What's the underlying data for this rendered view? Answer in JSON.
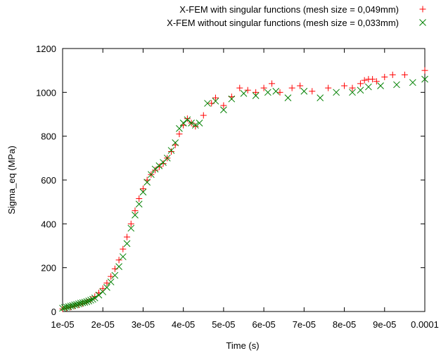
{
  "chart_data": {
    "type": "scatter",
    "title": "",
    "xlabel": "Time (s)",
    "ylabel": "Sigma_eq (MPa)",
    "xlim": [
      1e-05,
      0.0001
    ],
    "ylim": [
      0,
      1200
    ],
    "x_ticks": [
      {
        "value": 1e-05,
        "label": "1e-05"
      },
      {
        "value": 2e-05,
        "label": "2e-05"
      },
      {
        "value": 3e-05,
        "label": "3e-05"
      },
      {
        "value": 4e-05,
        "label": "4e-05"
      },
      {
        "value": 5e-05,
        "label": "5e-05"
      },
      {
        "value": 6e-05,
        "label": "6e-05"
      },
      {
        "value": 7e-05,
        "label": "7e-05"
      },
      {
        "value": 8e-05,
        "label": "8e-05"
      },
      {
        "value": 9e-05,
        "label": "9e-05"
      },
      {
        "value": 0.0001,
        "label": "0.0001"
      }
    ],
    "y_ticks": [
      {
        "value": 0,
        "label": "0"
      },
      {
        "value": 200,
        "label": "200"
      },
      {
        "value": 400,
        "label": "400"
      },
      {
        "value": 600,
        "label": "600"
      },
      {
        "value": 800,
        "label": "800"
      },
      {
        "value": 1000,
        "label": "1000"
      },
      {
        "value": 1200,
        "label": "1200"
      }
    ],
    "grid": false,
    "legend_position": "top-right",
    "series": [
      {
        "name": "X-FEM with singular functions (mesh size = 0,049mm)",
        "marker": "plus",
        "color": "#ff0000",
        "points": [
          [
            1e-05,
            12
          ],
          [
            1.1e-05,
            16
          ],
          [
            1.2e-05,
            20
          ],
          [
            1.3e-05,
            25
          ],
          [
            1.4e-05,
            30
          ],
          [
            1.5e-05,
            37
          ],
          [
            1.6e-05,
            45
          ],
          [
            1.7e-05,
            55
          ],
          [
            1.8e-05,
            68
          ],
          [
            1.9e-05,
            85
          ],
          [
            2e-05,
            105
          ],
          [
            2.1e-05,
            130
          ],
          [
            2.2e-05,
            160
          ],
          [
            2.3e-05,
            195
          ],
          [
            2.4e-05,
            235
          ],
          [
            2.5e-05,
            285
          ],
          [
            2.6e-05,
            340
          ],
          [
            2.7e-05,
            400
          ],
          [
            2.8e-05,
            460
          ],
          [
            2.9e-05,
            515
          ],
          [
            3e-05,
            560
          ],
          [
            3.1e-05,
            600
          ],
          [
            3.2e-05,
            625
          ],
          [
            3.3e-05,
            645
          ],
          [
            3.4e-05,
            660
          ],
          [
            3.5e-05,
            675
          ],
          [
            3.6e-05,
            700
          ],
          [
            3.7e-05,
            730
          ],
          [
            3.8e-05,
            760
          ],
          [
            3.9e-05,
            810
          ],
          [
            4e-05,
            850
          ],
          [
            4.1e-05,
            880
          ],
          [
            4.2e-05,
            860
          ],
          [
            4.3e-05,
            845
          ],
          [
            4.5e-05,
            895
          ],
          [
            4.7e-05,
            950
          ],
          [
            4.8e-05,
            975
          ],
          [
            5e-05,
            940
          ],
          [
            5.2e-05,
            980
          ],
          [
            5.4e-05,
            1020
          ],
          [
            5.6e-05,
            1010
          ],
          [
            5.8e-05,
            1000
          ],
          [
            6e-05,
            1020
          ],
          [
            6.2e-05,
            1040
          ],
          [
            6.4e-05,
            1000
          ],
          [
            6.7e-05,
            1020
          ],
          [
            6.9e-05,
            1030
          ],
          [
            7.2e-05,
            1005
          ],
          [
            7.6e-05,
            1020
          ],
          [
            8e-05,
            1030
          ],
          [
            8.2e-05,
            1020
          ],
          [
            8.4e-05,
            1040
          ],
          [
            8.5e-05,
            1055
          ],
          [
            8.6e-05,
            1060
          ],
          [
            8.7e-05,
            1060
          ],
          [
            8.8e-05,
            1050
          ],
          [
            9e-05,
            1070
          ],
          [
            9.2e-05,
            1080
          ],
          [
            9.5e-05,
            1080
          ],
          [
            0.0001,
            1100
          ]
        ]
      },
      {
        "name": "X-FEM without singular functions (mesh size = 0,033mm)",
        "marker": "cross",
        "color": "#008000",
        "points": [
          [
            1e-05,
            15
          ],
          [
            1.05e-05,
            18
          ],
          [
            1.1e-05,
            20
          ],
          [
            1.15e-05,
            22
          ],
          [
            1.2e-05,
            25
          ],
          [
            1.25e-05,
            27
          ],
          [
            1.3e-05,
            30
          ],
          [
            1.35e-05,
            32
          ],
          [
            1.4e-05,
            35
          ],
          [
            1.45e-05,
            38
          ],
          [
            1.5e-05,
            40
          ],
          [
            1.55e-05,
            42
          ],
          [
            1.6e-05,
            45
          ],
          [
            1.65e-05,
            48
          ],
          [
            1.7e-05,
            52
          ],
          [
            1.75e-05,
            56
          ],
          [
            1.8e-05,
            62
          ],
          [
            1.9e-05,
            75
          ],
          [
            2e-05,
            90
          ],
          [
            2.1e-05,
            110
          ],
          [
            2.2e-05,
            135
          ],
          [
            2.3e-05,
            165
          ],
          [
            2.4e-05,
            205
          ],
          [
            2.5e-05,
            250
          ],
          [
            2.6e-05,
            310
          ],
          [
            2.7e-05,
            380
          ],
          [
            2.8e-05,
            440
          ],
          [
            2.9e-05,
            490
          ],
          [
            3e-05,
            545
          ],
          [
            3.1e-05,
            590
          ],
          [
            3.2e-05,
            625
          ],
          [
            3.3e-05,
            650
          ],
          [
            3.4e-05,
            665
          ],
          [
            3.5e-05,
            680
          ],
          [
            3.6e-05,
            700
          ],
          [
            3.7e-05,
            735
          ],
          [
            3.8e-05,
            770
          ],
          [
            3.9e-05,
            835
          ],
          [
            4e-05,
            860
          ],
          [
            4.1e-05,
            875
          ],
          [
            4.2e-05,
            860
          ],
          [
            4.3e-05,
            850
          ],
          [
            4.4e-05,
            860
          ],
          [
            4.6e-05,
            950
          ],
          [
            4.8e-05,
            960
          ],
          [
            5e-05,
            920
          ],
          [
            5.2e-05,
            970
          ],
          [
            5.5e-05,
            995
          ],
          [
            5.8e-05,
            985
          ],
          [
            6.1e-05,
            1000
          ],
          [
            6.3e-05,
            1005
          ],
          [
            6.6e-05,
            975
          ],
          [
            7e-05,
            1005
          ],
          [
            7.4e-05,
            975
          ],
          [
            7.8e-05,
            1000
          ],
          [
            8.2e-05,
            1000
          ],
          [
            8.4e-05,
            1010
          ],
          [
            8.6e-05,
            1025
          ],
          [
            8.9e-05,
            1030
          ],
          [
            9.3e-05,
            1035
          ],
          [
            9.7e-05,
            1045
          ],
          [
            0.0001,
            1060
          ]
        ]
      }
    ]
  }
}
